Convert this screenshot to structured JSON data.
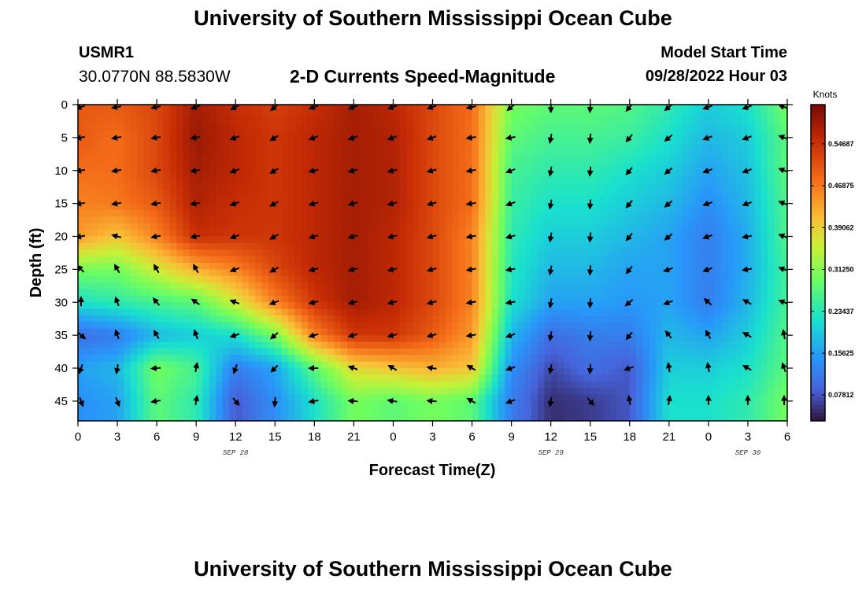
{
  "header": {
    "title": "University of Southern Mississippi Ocean Cube",
    "station_id": "USMR1",
    "coordinates": "30.0770N  88.5830W",
    "plot_title": "2-D Currents Speed-Magnitude",
    "model_start_label": "Model Start Time",
    "model_start_value": "09/28/2022 Hour 03"
  },
  "footer": {
    "title": "University of Southern Mississippi Ocean Cube"
  },
  "chart_data": {
    "type": "heatmap",
    "title": "2-D Currents Speed-Magnitude",
    "xlabel": "Forecast Time(Z)",
    "ylabel": "Depth (ft)",
    "x_tick_labels": [
      "0",
      "3",
      "6",
      "9",
      "12",
      "15",
      "18",
      "21",
      "0",
      "3",
      "6",
      "9",
      "12",
      "15",
      "18",
      "21",
      "0",
      "3",
      "6"
    ],
    "x_hours": [
      0,
      3,
      6,
      9,
      12,
      15,
      18,
      21,
      24,
      27,
      30,
      33,
      36,
      39,
      42,
      45,
      48,
      51,
      54
    ],
    "date_labels": [
      {
        "text": "SEP 28",
        "hour": 12
      },
      {
        "text": "SEP 29",
        "hour": 36
      },
      {
        "text": "SEP 30",
        "hour": 51
      }
    ],
    "y_ticks": [
      0,
      5,
      10,
      15,
      20,
      25,
      30,
      35,
      40,
      45
    ],
    "ylim": [
      48,
      0
    ],
    "xlim": [
      0,
      54
    ],
    "colorbar": {
      "label": "Knots",
      "ticks": [
        "0.07812",
        "0.15625",
        "0.23437",
        "0.31250",
        "0.39062",
        "0.46875",
        "0.54687"
      ],
      "range": [
        0.03,
        0.62
      ]
    },
    "speed_grid_note": "Approximate speed (knots) read from colour, rows = depths 0..45 ft step 5, cols = hours 0..54 step 3",
    "speed_grid": [
      [
        0.5,
        0.5,
        0.52,
        0.58,
        0.55,
        0.53,
        0.55,
        0.58,
        0.56,
        0.52,
        0.48,
        0.3,
        0.28,
        0.28,
        0.27,
        0.24,
        0.2,
        0.22,
        0.3
      ],
      [
        0.5,
        0.48,
        0.52,
        0.59,
        0.56,
        0.54,
        0.56,
        0.58,
        0.57,
        0.52,
        0.48,
        0.28,
        0.26,
        0.26,
        0.25,
        0.22,
        0.18,
        0.2,
        0.28
      ],
      [
        0.48,
        0.48,
        0.52,
        0.58,
        0.56,
        0.54,
        0.56,
        0.58,
        0.57,
        0.52,
        0.48,
        0.26,
        0.24,
        0.24,
        0.22,
        0.2,
        0.16,
        0.19,
        0.28
      ],
      [
        0.46,
        0.47,
        0.5,
        0.57,
        0.55,
        0.54,
        0.56,
        0.58,
        0.57,
        0.52,
        0.48,
        0.25,
        0.22,
        0.22,
        0.2,
        0.18,
        0.14,
        0.18,
        0.27
      ],
      [
        0.44,
        0.4,
        0.46,
        0.55,
        0.54,
        0.54,
        0.56,
        0.58,
        0.56,
        0.52,
        0.46,
        0.24,
        0.2,
        0.2,
        0.18,
        0.16,
        0.12,
        0.17,
        0.27
      ],
      [
        0.3,
        0.3,
        0.36,
        0.42,
        0.46,
        0.52,
        0.56,
        0.58,
        0.56,
        0.52,
        0.46,
        0.23,
        0.18,
        0.18,
        0.16,
        0.16,
        0.12,
        0.17,
        0.26
      ],
      [
        0.22,
        0.24,
        0.26,
        0.28,
        0.36,
        0.46,
        0.54,
        0.58,
        0.56,
        0.52,
        0.46,
        0.22,
        0.16,
        0.16,
        0.15,
        0.16,
        0.12,
        0.18,
        0.26
      ],
      [
        0.1,
        0.12,
        0.18,
        0.2,
        0.22,
        0.3,
        0.46,
        0.54,
        0.54,
        0.5,
        0.44,
        0.18,
        0.1,
        0.12,
        0.12,
        0.18,
        0.16,
        0.2,
        0.27
      ],
      [
        0.16,
        0.18,
        0.3,
        0.26,
        0.12,
        0.16,
        0.28,
        0.38,
        0.4,
        0.42,
        0.4,
        0.14,
        0.07,
        0.1,
        0.08,
        0.2,
        0.2,
        0.22,
        0.28
      ],
      [
        0.14,
        0.16,
        0.28,
        0.24,
        0.08,
        0.14,
        0.22,
        0.3,
        0.28,
        0.3,
        0.28,
        0.12,
        0.05,
        0.06,
        0.08,
        0.22,
        0.22,
        0.24,
        0.3
      ]
    ],
    "arrow_dir_note": "Arrow direction in degrees (0 = right, 90 = up) per grid cell",
    "arrow_dirs": [
      [
        200,
        190,
        190,
        200,
        210,
        220,
        200,
        200,
        200,
        200,
        190,
        220,
        270,
        265,
        230,
        220,
        200,
        200,
        160
      ],
      [
        190,
        190,
        190,
        190,
        200,
        210,
        200,
        200,
        200,
        200,
        190,
        190,
        260,
        265,
        230,
        220,
        200,
        200,
        160
      ],
      [
        190,
        190,
        190,
        190,
        200,
        210,
        195,
        195,
        195,
        195,
        190,
        200,
        260,
        265,
        230,
        220,
        200,
        200,
        160
      ],
      [
        190,
        190,
        190,
        190,
        200,
        210,
        195,
        195,
        195,
        195,
        190,
        200,
        260,
        265,
        230,
        220,
        200,
        200,
        160
      ],
      [
        190,
        165,
        190,
        190,
        200,
        210,
        195,
        195,
        195,
        195,
        190,
        195,
        260,
        265,
        230,
        220,
        200,
        190,
        160
      ],
      [
        135,
        120,
        120,
        120,
        200,
        210,
        195,
        195,
        195,
        195,
        190,
        190,
        260,
        265,
        230,
        200,
        200,
        190,
        160
      ],
      [
        90,
        110,
        130,
        145,
        160,
        200,
        195,
        195,
        195,
        195,
        190,
        190,
        260,
        265,
        220,
        200,
        140,
        150,
        160
      ],
      [
        320,
        110,
        120,
        110,
        200,
        220,
        195,
        195,
        195,
        195,
        190,
        200,
        260,
        265,
        230,
        130,
        120,
        150,
        100
      ],
      [
        250,
        260,
        185,
        80,
        250,
        225,
        180,
        160,
        150,
        170,
        150,
        200,
        260,
        265,
        200,
        100,
        100,
        150,
        110
      ],
      [
        290,
        290,
        190,
        80,
        310,
        265,
        190,
        175,
        170,
        175,
        150,
        200,
        260,
        310,
        100,
        80,
        90,
        90,
        90
      ]
    ]
  }
}
